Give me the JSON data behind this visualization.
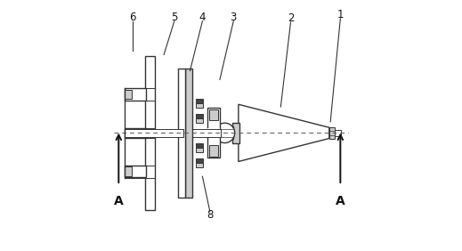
{
  "bg_color": "#ffffff",
  "line_color": "#333333",
  "dark_color": "#444444",
  "gray_color": "#888888",
  "light_gray": "#cccccc",
  "dark_gray": "#666666",
  "centerline_color": "#555555",
  "arrow_color": "#222222",
  "figsize": [
    5.19,
    2.82
  ],
  "dpi": 100
}
